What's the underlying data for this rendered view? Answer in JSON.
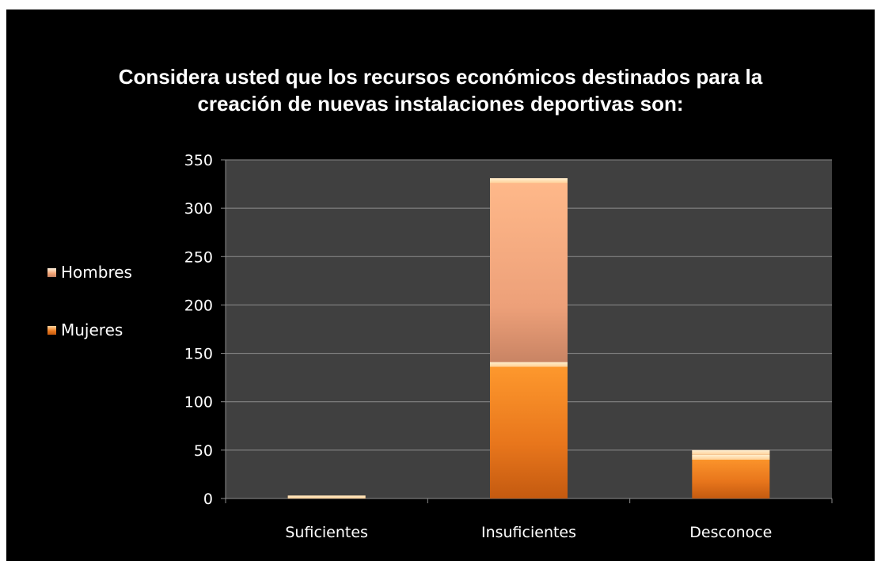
{
  "chart_data": {
    "type": "bar",
    "stacked": true,
    "title_line1": "Considera usted que los recursos económicos destinados para la",
    "title_line2": "creación de nuevas instalaciones deportivas son:",
    "categories": [
      "Suficientes",
      "Insuficientes",
      "Desconoce"
    ],
    "series": [
      {
        "name": "Mujeres",
        "values": [
          3,
          141,
          45
        ],
        "color": "#e8761c"
      },
      {
        "name": "Hombres",
        "values": [
          0,
          190,
          5
        ],
        "color": "#f2a374"
      }
    ],
    "ylim": [
      0,
      350
    ],
    "yticks": [
      "0",
      "50",
      "100",
      "150",
      "200",
      "250",
      "300",
      "350"
    ],
    "grid": true,
    "legend_placement": "left",
    "plot_background": "#404040",
    "gridline_color": "#8c8c8c",
    "text_color": "#ffffff"
  }
}
